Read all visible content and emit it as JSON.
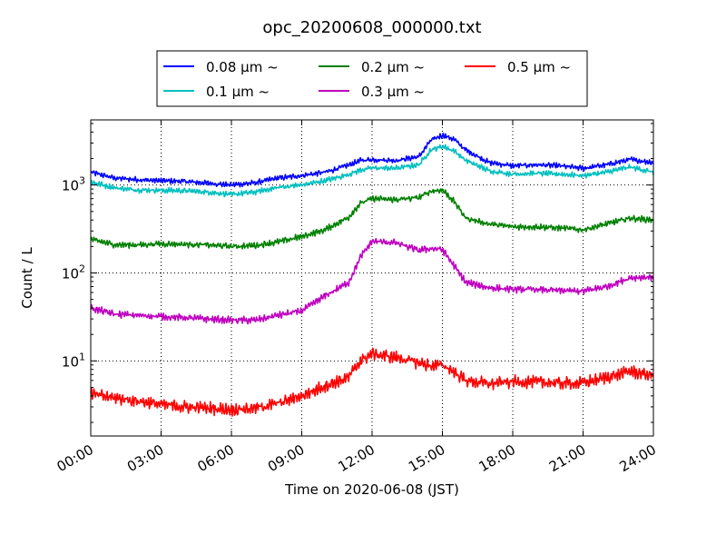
{
  "chart_data": {
    "type": "line",
    "title": "opc_20200608_000000.txt",
    "xlabel": "Time on 2020-06-08 (JST)",
    "ylabel": "Count / L",
    "yscale": "log",
    "ylim": [
      1.4,
      5500
    ],
    "xlim": [
      "2020-06-08 00:00",
      "2020-06-09 00:00"
    ],
    "x_tick_labels": [
      "00:00",
      "03:00",
      "06:00",
      "09:00",
      "12:00",
      "15:00",
      "18:00",
      "21:00",
      "24:00"
    ],
    "y_tick_labels": [
      {
        "base": "10",
        "exp": "1",
        "value": 10
      },
      {
        "base": "10",
        "exp": "2",
        "value": 100
      },
      {
        "base": "10",
        "exp": "3",
        "value": 1000
      }
    ],
    "grid": true,
    "legend_position": "top-center",
    "x_hours": [
      0,
      1,
      2,
      3,
      4,
      5,
      6,
      7,
      8,
      9,
      10,
      11,
      11.5,
      12,
      13,
      14,
      14.5,
      15,
      15.5,
      16,
      17,
      18,
      19,
      20,
      21,
      22,
      23,
      24
    ],
    "series": [
      {
        "name": "0.08 μm ~",
        "color": "#0000ff",
        "noise": 0.035,
        "values": [
          1400,
          1200,
          1150,
          1120,
          1100,
          1050,
          1000,
          1060,
          1200,
          1280,
          1400,
          1680,
          1900,
          1950,
          1900,
          2100,
          3200,
          3700,
          3300,
          2500,
          1800,
          1650,
          1700,
          1650,
          1550,
          1700,
          1950,
          1800
        ]
      },
      {
        "name": "0.1 μm ~",
        "color": "#00bfbf",
        "noise": 0.035,
        "values": [
          1080,
          930,
          880,
          870,
          860,
          830,
          780,
          830,
          940,
          1000,
          1120,
          1320,
          1480,
          1560,
          1550,
          1700,
          2500,
          2750,
          2450,
          1900,
          1450,
          1330,
          1360,
          1330,
          1280,
          1400,
          1600,
          1400
        ]
      },
      {
        "name": "0.2 μm ~",
        "color": "#008000",
        "noise": 0.04,
        "values": [
          240,
          210,
          208,
          215,
          212,
          208,
          200,
          205,
          225,
          260,
          310,
          430,
          620,
          700,
          680,
          720,
          850,
          880,
          650,
          420,
          360,
          335,
          335,
          325,
          310,
          360,
          420,
          400
        ]
      },
      {
        "name": "0.3 μm ~",
        "color": "#bf00bf",
        "noise": 0.045,
        "values": [
          40,
          34,
          33,
          32,
          31,
          30,
          29,
          29,
          33,
          37,
          55,
          78,
          150,
          230,
          220,
          180,
          190,
          185,
          120,
          78,
          68,
          65,
          65,
          63,
          62,
          70,
          88,
          90
        ]
      },
      {
        "name": "0.3 μm ~",
        "color": "#bf00bf",
        "noise": 0.0,
        "hidden": true,
        "values": []
      },
      {
        "name": "0.5 μm ~",
        "color": "#ff0000",
        "noise": 0.08,
        "values": [
          4.2,
          3.8,
          3.5,
          3.2,
          3.0,
          2.9,
          2.8,
          2.9,
          3.3,
          4.0,
          5.2,
          6.5,
          10,
          12,
          11,
          9.5,
          8.8,
          9.0,
          7.5,
          6.0,
          5.5,
          5.8,
          5.8,
          5.6,
          5.6,
          6.5,
          7.6,
          6.8
        ]
      }
    ]
  },
  "legend_units": {
    "label_prefix": [
      "0.08",
      "0.1",
      "0.2",
      "0.3",
      "0.5"
    ],
    "unit": "μm",
    "suffix": "~"
  }
}
